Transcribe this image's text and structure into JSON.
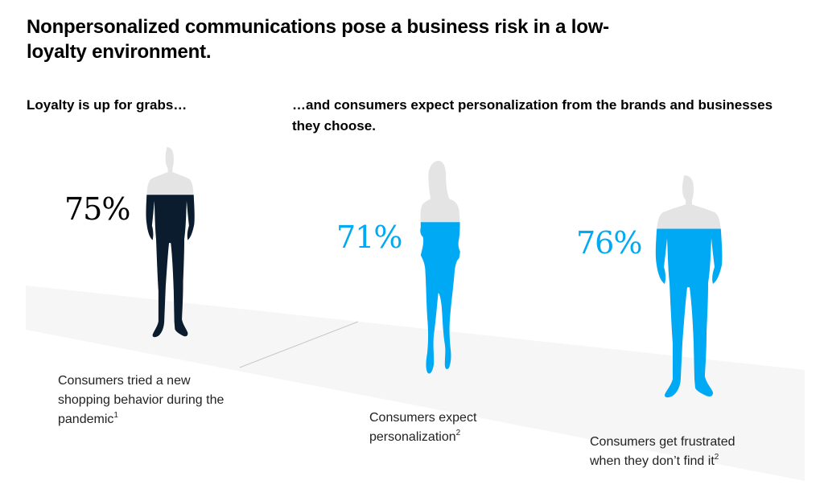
{
  "title": "Nonpersonalized communications pose a business risk in a low-loyalty environment.",
  "left_heading": "Loyalty is up for grabs…",
  "right_heading": "…and consumers expect personalization from the brands and businesses they choose.",
  "colors": {
    "dark_navy": "#0a1c2e",
    "cyan": "#00a9f4",
    "unfilled": "#e4e4e4",
    "floor": "#f6f6f6"
  },
  "chart_data": {
    "type": "pictogram",
    "items": [
      {
        "label": "75%",
        "value": 75,
        "caption": "Consumers tried a new shopping behavior during the pandemic",
        "footnote": "1",
        "figure": "man-icon",
        "color": "#0a1c2e",
        "label_color": "#000000"
      },
      {
        "label": "71%",
        "value": 71,
        "caption": "Consumers expect personalization",
        "footnote": "2",
        "figure": "woman-icon",
        "color": "#00a9f4",
        "label_color": "#00a9f4"
      },
      {
        "label": "76%",
        "value": 76,
        "caption": "Consumers get frustrated when they don’t find it",
        "footnote": "2",
        "figure": "man-icon",
        "color": "#00a9f4",
        "label_color": "#00a9f4"
      }
    ]
  }
}
